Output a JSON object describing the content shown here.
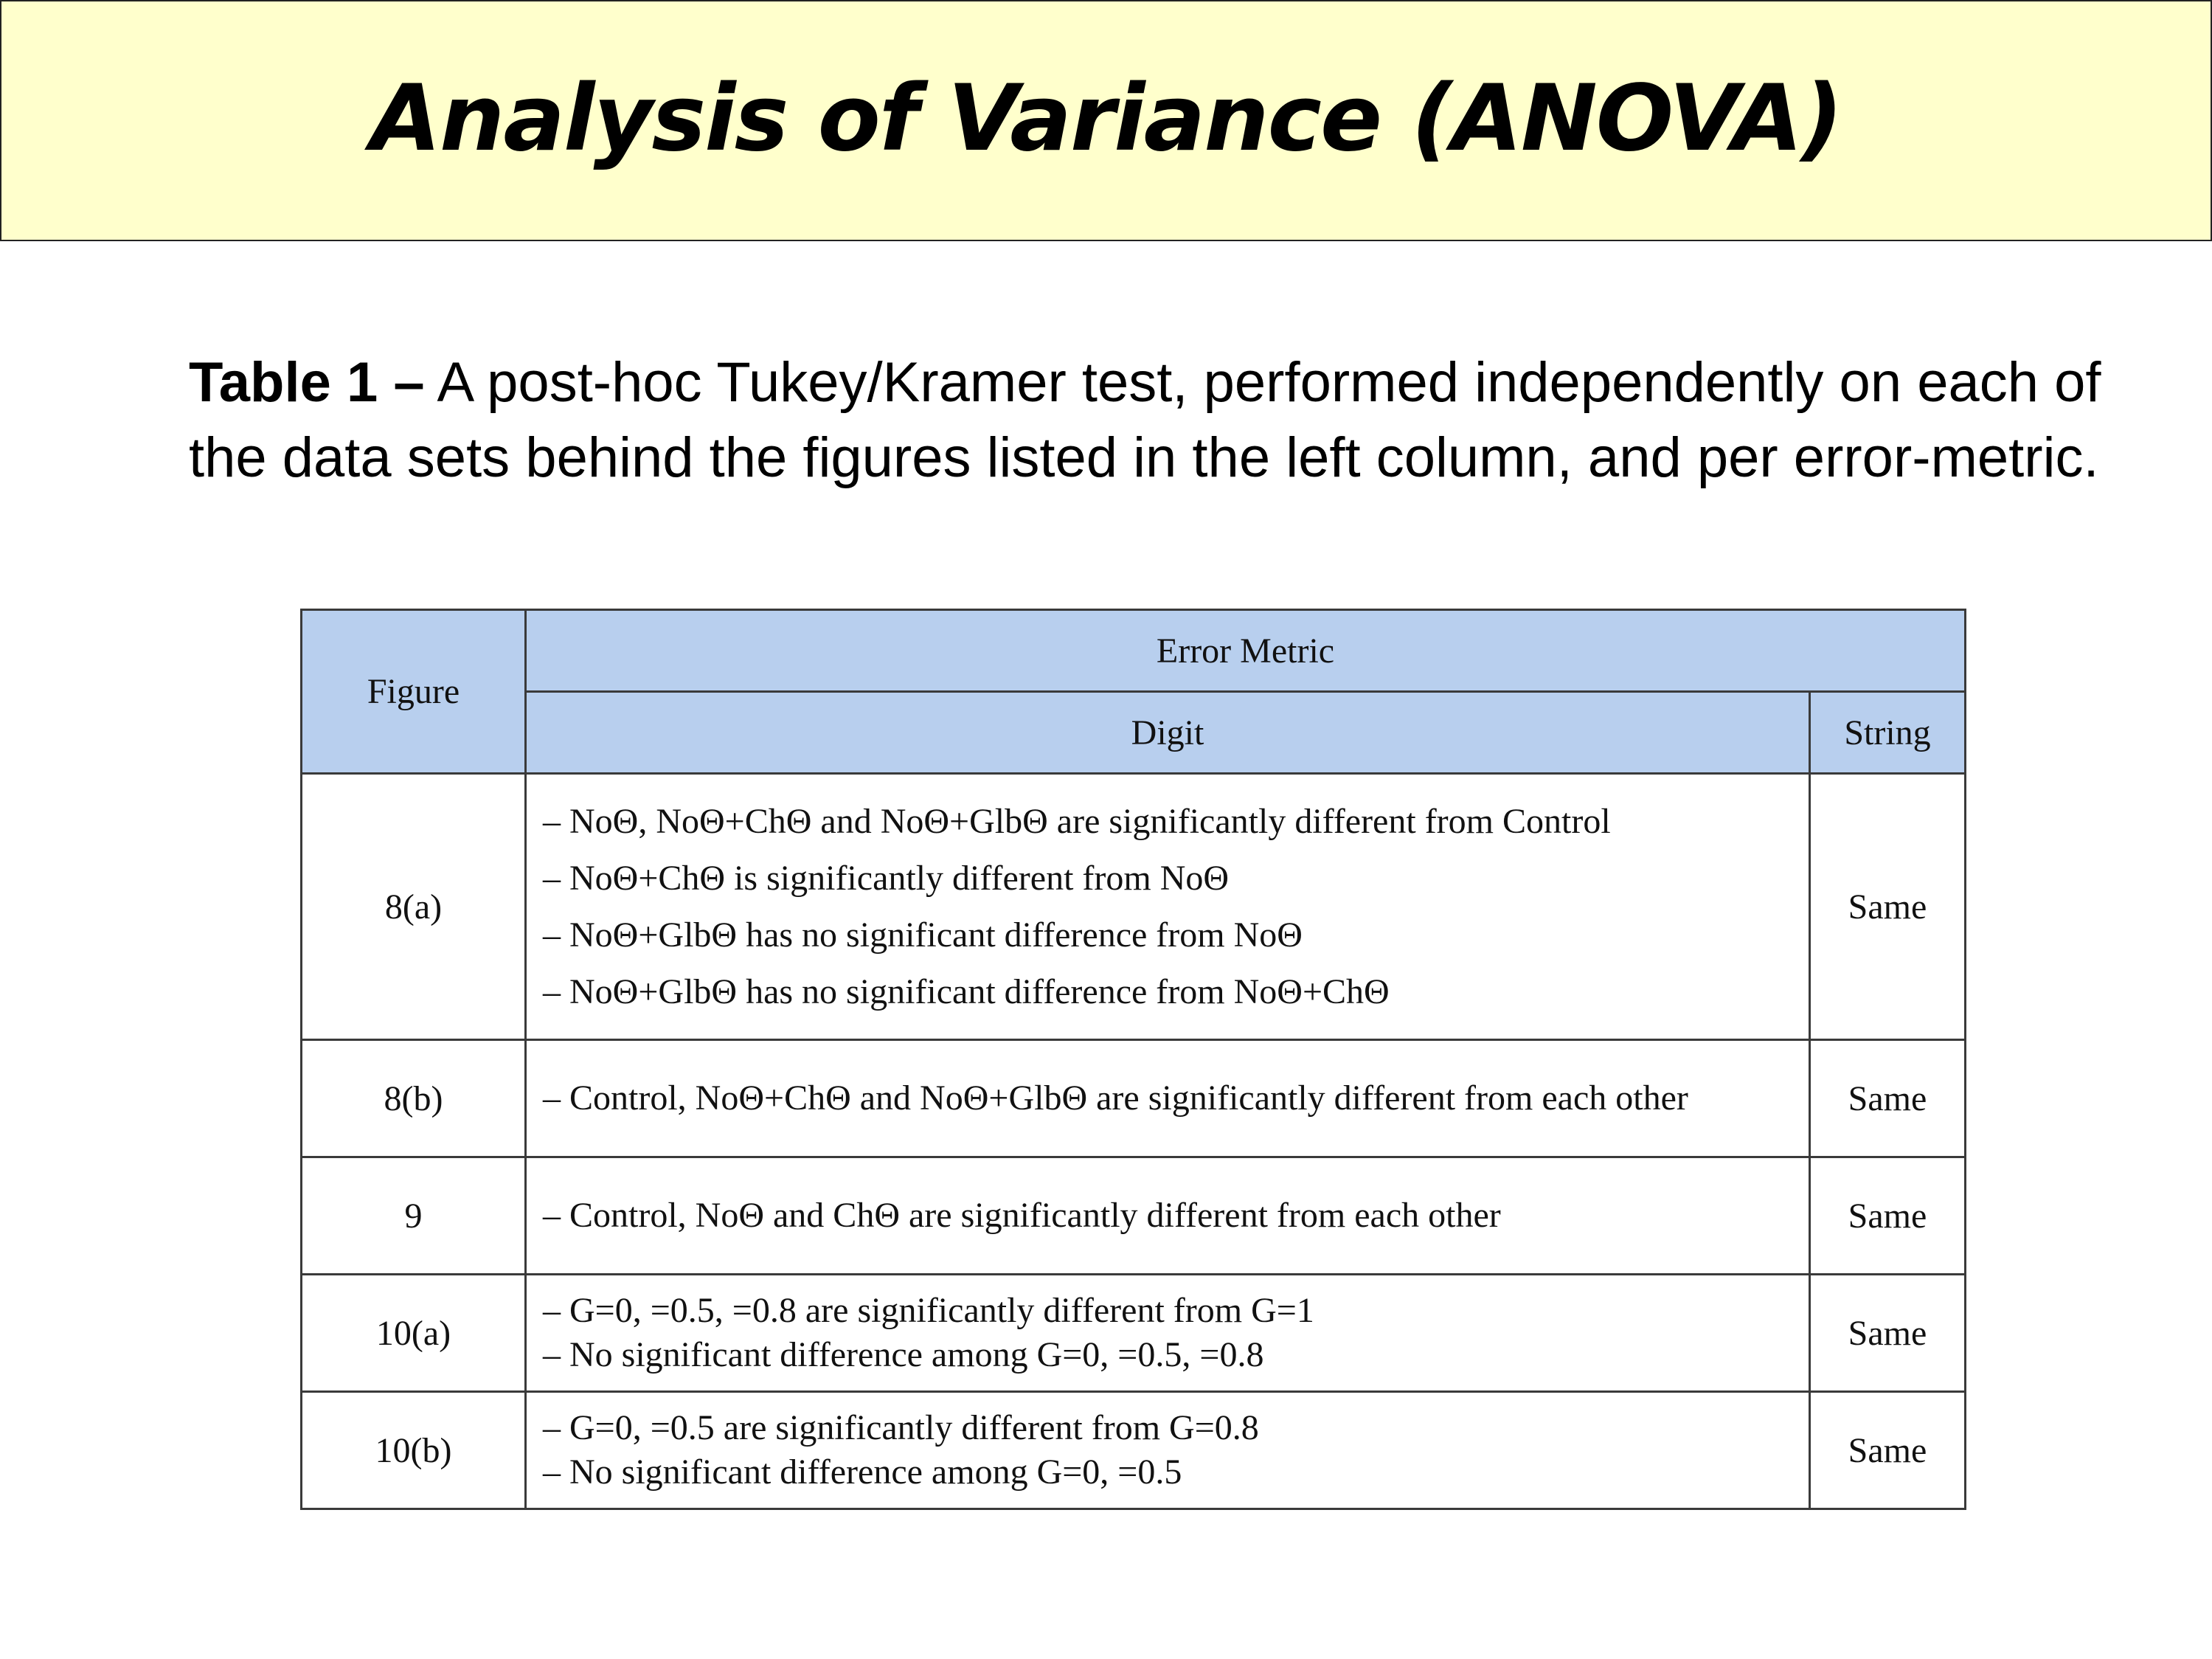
{
  "slide": {
    "title": "Analysis of Variance (ANOVA)",
    "caption_label": "Table 1 –",
    "caption_body": " A post-hoc Tukey/Kramer test, performed independently on each of the data sets behind the  figures listed in the left column, and per error-metric."
  },
  "table": {
    "headers": {
      "figure": "Figure",
      "error_metric": "Error Metric",
      "digit": "Digit",
      "string": "String"
    },
    "rows": [
      {
        "figure": "8(a)",
        "digit": [
          "– NoΘ, NoΘ+ChΘ and NoΘ+GlbΘ are significantly different from Control",
          "– NoΘ+ChΘ is significantly different from NoΘ",
          "– NoΘ+GlbΘ has no significant difference from NoΘ",
          "– NoΘ+GlbΘ has no significant difference from NoΘ+ChΘ"
        ],
        "string": "Same"
      },
      {
        "figure": "8(b)",
        "digit": [
          "– Control, NoΘ+ChΘ and NoΘ+GlbΘ are significantly different from each other"
        ],
        "string": "Same"
      },
      {
        "figure": "9",
        "digit": [
          "– Control, NoΘ and ChΘ are significantly different from each other"
        ],
        "string": "Same"
      },
      {
        "figure": "10(a)",
        "digit": [
          "– G=0, =0.5, =0.8 are significantly different from G=1",
          "– No significant difference among G=0, =0.5, =0.8"
        ],
        "string": "Same"
      },
      {
        "figure": "10(b)",
        "digit": [
          "– G=0, =0.5 are significantly different from G=0.8",
          "– No significant difference among G=0, =0.5"
        ],
        "string": "Same"
      }
    ]
  },
  "colors": {
    "banner_background": "#ffffcc",
    "header_background": "#b8cfee"
  }
}
